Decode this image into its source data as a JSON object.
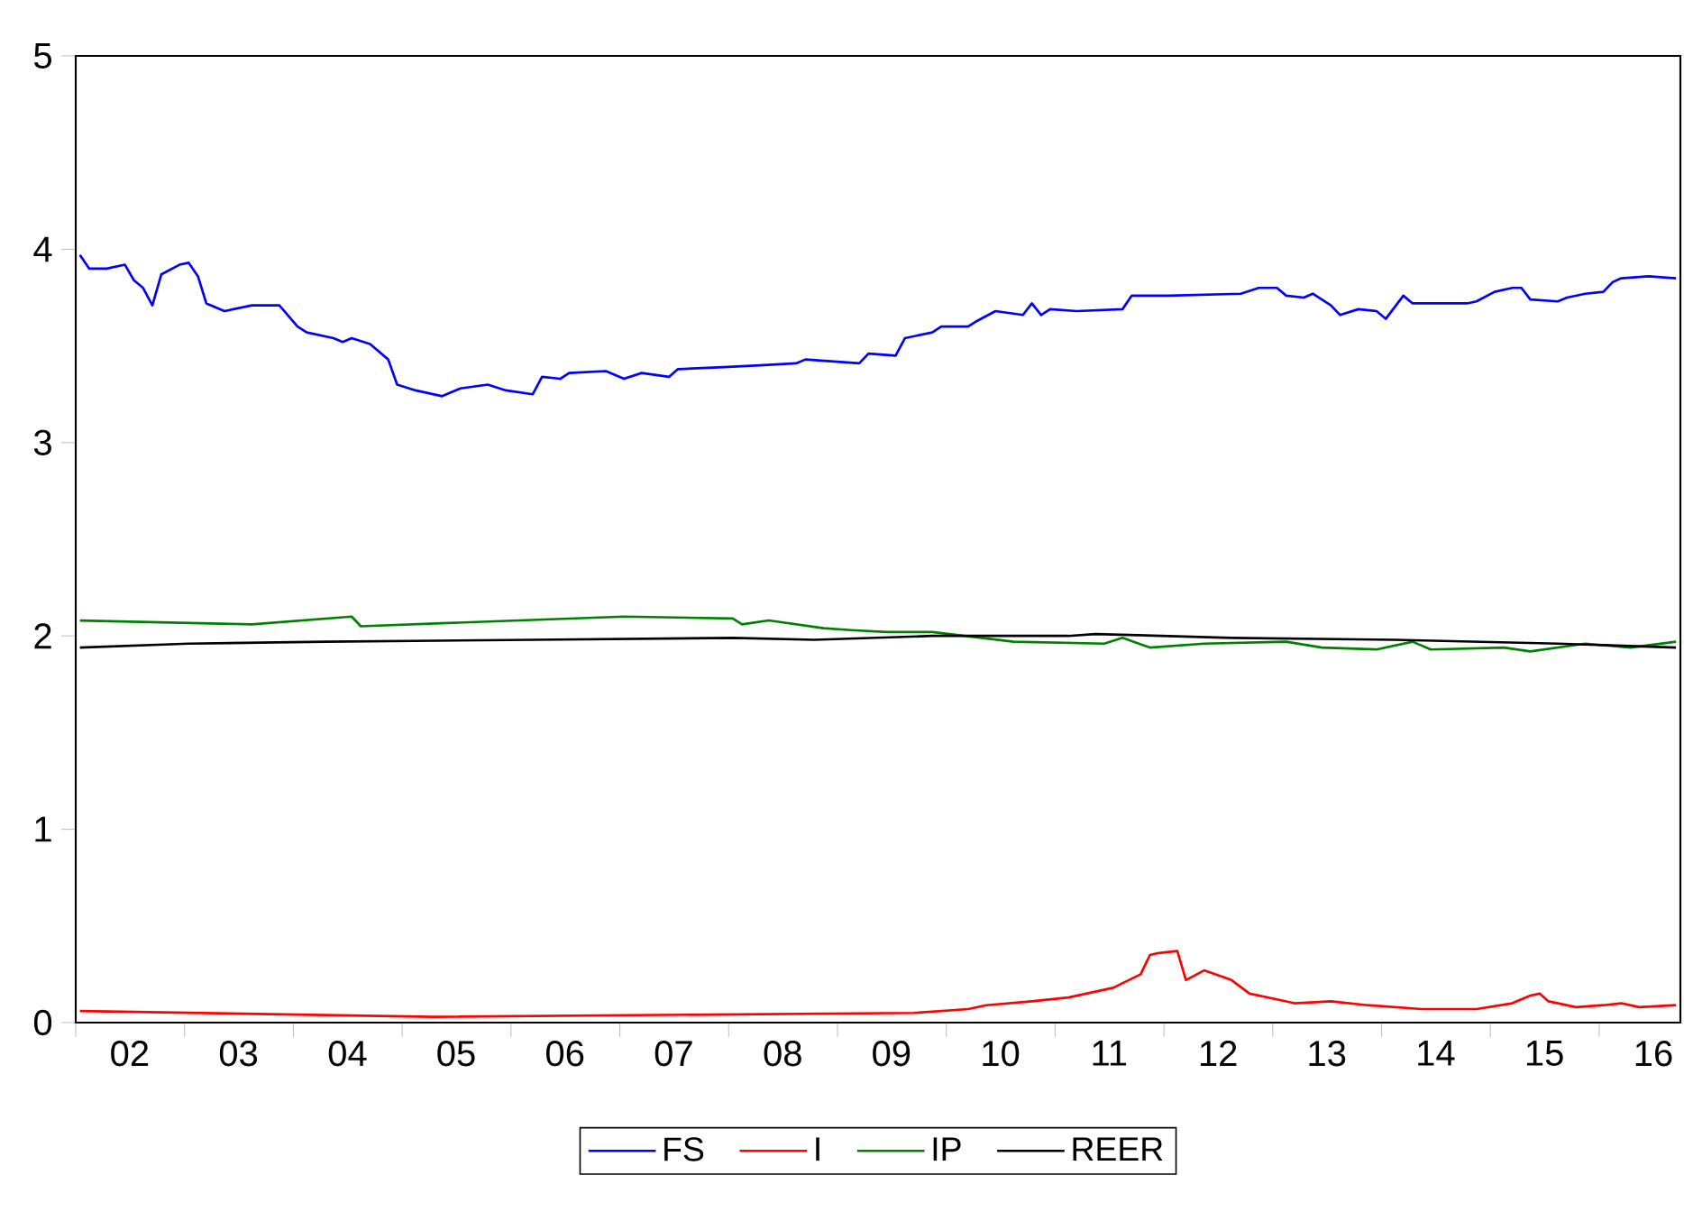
{
  "chart_data": {
    "type": "line",
    "xlim": [
      "2002-01-01",
      "2016-09-30"
    ],
    "ylim": [
      0,
      5
    ],
    "yticks": [
      0,
      1,
      2,
      3,
      4,
      5
    ],
    "xticks": [
      {
        "value": "2002-01-01",
        "label": null
      },
      {
        "value": "2003-01-01",
        "label": null
      },
      {
        "value": "2004-01-01",
        "label": null
      },
      {
        "value": "2005-01-01",
        "label": null
      },
      {
        "value": "2006-01-01",
        "label": null
      },
      {
        "value": "2007-01-01",
        "label": null
      },
      {
        "value": "2008-01-01",
        "label": null
      },
      {
        "value": "2009-01-01",
        "label": null
      },
      {
        "value": "2010-01-01",
        "label": null
      },
      {
        "value": "2011-01-01",
        "label": null
      },
      {
        "value": "2012-01-01",
        "label": null
      },
      {
        "value": "2013-01-01",
        "label": null
      },
      {
        "value": "2014-01-01",
        "label": null
      },
      {
        "value": "2015-01-01",
        "label": null
      },
      {
        "value": "2016-01-01",
        "label": null
      },
      {
        "value": "2002-07-01",
        "label": "02"
      },
      {
        "value": "2003-07-01",
        "label": "03"
      },
      {
        "value": "2004-07-01",
        "label": "04"
      },
      {
        "value": "2005-07-01",
        "label": "05"
      },
      {
        "value": "2006-07-01",
        "label": "06"
      },
      {
        "value": "2007-07-01",
        "label": "07"
      },
      {
        "value": "2008-07-01",
        "label": "08"
      },
      {
        "value": "2009-07-01",
        "label": "09"
      },
      {
        "value": "2010-07-01",
        "label": "10"
      },
      {
        "value": "2011-07-01",
        "label": "11"
      },
      {
        "value": "2012-07-01",
        "label": "12"
      },
      {
        "value": "2013-07-01",
        "label": "13"
      },
      {
        "value": "2014-07-01",
        "label": "14"
      },
      {
        "value": "2015-07-01",
        "label": "15"
      },
      {
        "value": "2016-07-01",
        "label": "16"
      }
    ],
    "grid": false,
    "legend": "bottom",
    "marker": "none",
    "line_style": "solid",
    "series": [
      {
        "name": "FS",
        "color": "#0000ff",
        "x": [
          "2002-01",
          "2002-02",
          "2002-04",
          "2002-06",
          "2002-07",
          "2002-08",
          "2002-09",
          "2002-10",
          "2002-12",
          "2003-01",
          "2003-02",
          "2003-03",
          "2003-05",
          "2003-08",
          "2003-11",
          "2004-01",
          "2004-02",
          "2004-05",
          "2004-06",
          "2004-07",
          "2004-09",
          "2004-11",
          "2004-12",
          "2005-02",
          "2005-05",
          "2005-07",
          "2005-10",
          "2005-12",
          "2006-03",
          "2006-04",
          "2006-06",
          "2006-07",
          "2006-11",
          "2007-01",
          "2007-03",
          "2007-06",
          "2007-07",
          "2007-12",
          "2008-04",
          "2008-08",
          "2008-09",
          "2009-03",
          "2009-04",
          "2009-07",
          "2009-08",
          "2009-11",
          "2009-12",
          "2010-03",
          "2010-04",
          "2010-06",
          "2010-09",
          "2010-10",
          "2010-11",
          "2010-12",
          "2011-03",
          "2011-08",
          "2011-09",
          "2012-01",
          "2012-09",
          "2012-11",
          "2013-01",
          "2013-02",
          "2013-04",
          "2013-05",
          "2013-07",
          "2013-08",
          "2013-10",
          "2013-12",
          "2014-01",
          "2014-03",
          "2014-04",
          "2014-10",
          "2014-11",
          "2015-01",
          "2015-03",
          "2015-04",
          "2015-05",
          "2015-08",
          "2015-09",
          "2015-11",
          "2016-01",
          "2016-02",
          "2016-03",
          "2016-06",
          "2016-09"
        ],
        "values": [
          3.97,
          3.9,
          3.9,
          3.92,
          3.84,
          3.8,
          3.71,
          3.87,
          3.92,
          3.93,
          3.86,
          3.72,
          3.68,
          3.71,
          3.71,
          3.6,
          3.57,
          3.54,
          3.52,
          3.54,
          3.51,
          3.43,
          3.3,
          3.27,
          3.24,
          3.28,
          3.3,
          3.27,
          3.25,
          3.34,
          3.33,
          3.36,
          3.37,
          3.33,
          3.36,
          3.34,
          3.38,
          3.39,
          3.4,
          3.41,
          3.43,
          3.41,
          3.46,
          3.45,
          3.54,
          3.57,
          3.6,
          3.6,
          3.63,
          3.68,
          3.66,
          3.72,
          3.66,
          3.69,
          3.68,
          3.69,
          3.76,
          3.76,
          3.77,
          3.8,
          3.8,
          3.76,
          3.75,
          3.77,
          3.71,
          3.66,
          3.69,
          3.68,
          3.64,
          3.76,
          3.72,
          3.72,
          3.73,
          3.78,
          3.8,
          3.8,
          3.74,
          3.73,
          3.75,
          3.77,
          3.78,
          3.83,
          3.85,
          3.86,
          3.85
        ]
      },
      {
        "name": "I",
        "color": "#ff0000",
        "x": [
          "2002-01",
          "2005-04",
          "2009-09",
          "2010-03",
          "2010-05",
          "2010-10",
          "2011-02",
          "2011-07",
          "2011-10",
          "2011-11",
          "2011-12",
          "2012-02",
          "2012-03",
          "2012-05",
          "2012-08",
          "2012-10",
          "2013-01",
          "2013-03",
          "2013-07",
          "2013-11",
          "2014-05",
          "2014-11",
          "2015-03",
          "2015-05",
          "2015-06",
          "2015-07",
          "2015-10",
          "2016-01",
          "2016-03",
          "2016-05",
          "2016-09"
        ],
        "values": [
          0.06,
          0.03,
          0.05,
          0.07,
          0.09,
          0.11,
          0.13,
          0.18,
          0.25,
          0.35,
          0.36,
          0.37,
          0.22,
          0.27,
          0.22,
          0.15,
          0.12,
          0.1,
          0.11,
          0.09,
          0.07,
          0.07,
          0.1,
          0.14,
          0.15,
          0.11,
          0.08,
          0.09,
          0.1,
          0.08,
          0.09
        ]
      },
      {
        "name": "IP",
        "color": "#008000",
        "x": [
          "2002-01",
          "2003-08",
          "2004-07",
          "2004-08",
          "2007-01",
          "2008-01",
          "2008-02",
          "2008-05",
          "2008-11",
          "2009-02",
          "2009-06",
          "2009-11",
          "2010-08",
          "2011-06",
          "2011-08",
          "2011-11",
          "2012-05",
          "2013-02",
          "2013-06",
          "2013-12",
          "2014-04",
          "2014-06",
          "2015-02",
          "2015-05",
          "2015-11",
          "2016-04",
          "2016-09"
        ],
        "values": [
          2.08,
          2.06,
          2.1,
          2.05,
          2.1,
          2.09,
          2.06,
          2.08,
          2.04,
          2.03,
          2.02,
          2.02,
          1.97,
          1.96,
          1.99,
          1.94,
          1.96,
          1.97,
          1.94,
          1.93,
          1.97,
          1.93,
          1.94,
          1.92,
          1.96,
          1.94,
          1.97
        ]
      },
      {
        "name": "REER",
        "color": "#000000",
        "x": [
          "2002-01",
          "2003-01",
          "2004-04",
          "2006-03",
          "2008-01",
          "2008-10",
          "2009-11",
          "2011-02",
          "2011-05",
          "2012-08",
          "2014-02",
          "2014-11",
          "2015-08",
          "2016-09"
        ],
        "values": [
          1.94,
          1.96,
          1.97,
          1.98,
          1.99,
          1.98,
          2.0,
          2.0,
          2.01,
          1.99,
          1.98,
          1.97,
          1.96,
          1.94
        ]
      }
    ]
  }
}
